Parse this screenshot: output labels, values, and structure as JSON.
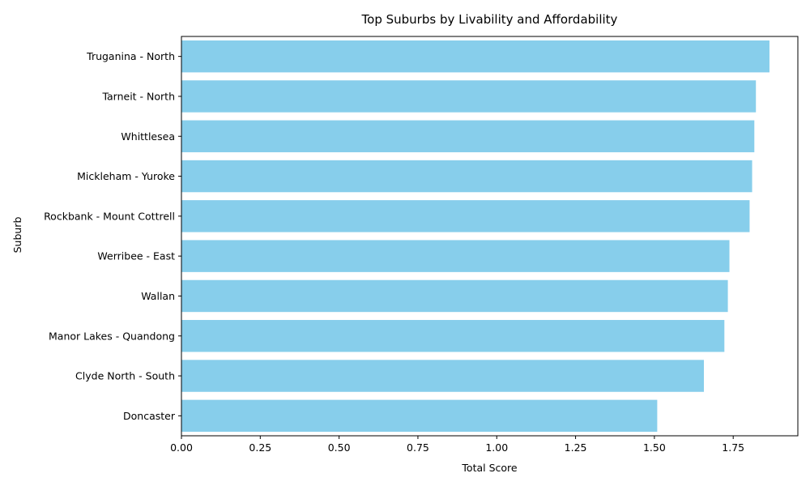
{
  "chart_data": {
    "type": "bar",
    "orientation": "horizontal",
    "title": "Top Suburbs by Livability and Affordability",
    "xlabel": "Total Score",
    "ylabel": "Suburb",
    "categories": [
      "Truganina - North",
      "Tarneit - North",
      "Whittlesea",
      "Mickleham - Yuroke",
      "Rockbank - Mount Cottrell",
      "Werribee - East",
      "Wallan",
      "Manor Lakes - Quandong",
      "Clyde North - South",
      "Doncaster"
    ],
    "values": [
      1.865,
      1.822,
      1.817,
      1.81,
      1.802,
      1.738,
      1.733,
      1.722,
      1.657,
      1.509
    ],
    "xlim": [
      0,
      1.955
    ],
    "xticks": [
      "0.00",
      "0.25",
      "0.50",
      "0.75",
      "1.00",
      "1.25",
      "1.50",
      "1.75"
    ],
    "bar_color": "#87ceeb",
    "grid": false
  }
}
